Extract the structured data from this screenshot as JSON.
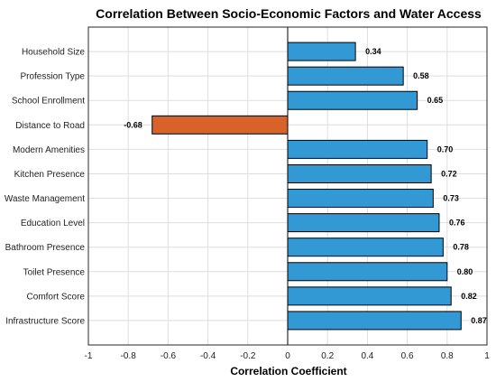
{
  "chart_data": {
    "type": "bar",
    "orientation": "horizontal",
    "title": "Correlation Between Socio-Economic Factors and Water Access",
    "xlabel": "Correlation Coefficient",
    "ylabel": "",
    "categories": [
      "Household Size",
      "Profession Type",
      "School Enrollment",
      "Distance to Road",
      "Modern Amenities",
      "Kitchen Presence",
      "Waste Management",
      "Education Level",
      "Bathroom Presence",
      "Toilet Presence",
      "Comfort Score",
      "Infrastructure Score"
    ],
    "values": [
      0.34,
      0.58,
      0.65,
      -0.68,
      0.7,
      0.72,
      0.73,
      0.76,
      0.78,
      0.8,
      0.82,
      0.87
    ],
    "value_labels": [
      "0.34",
      "0.58",
      "0.65",
      "-0.68",
      "0.70",
      "0.72",
      "0.73",
      "0.76",
      "0.78",
      "0.80",
      "0.82",
      "0.87"
    ],
    "xlim": [
      -1,
      1
    ],
    "xticks": [
      -1,
      -0.8,
      -0.6,
      -0.4,
      -0.2,
      0,
      0.2,
      0.4,
      0.6,
      0.8,
      1
    ],
    "xtick_labels": [
      "-1",
      "-0.8",
      "-0.6",
      "-0.4",
      "-0.2",
      "0",
      "0.2",
      "0.4",
      "0.6",
      "0.8",
      "1"
    ],
    "grid": true,
    "colors": {
      "positive": "#3399d4",
      "negative": "#d9622b"
    }
  }
}
